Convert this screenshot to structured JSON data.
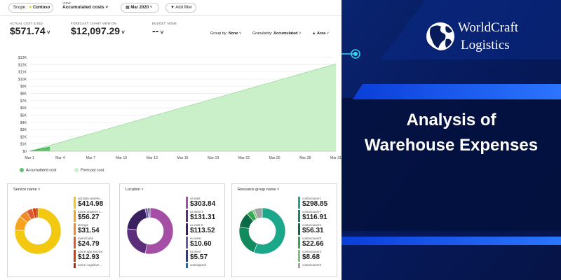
{
  "toolbar": {
    "scope_label": "Scope :",
    "scope_value": "Contoso",
    "view_caption": "VIEW",
    "view_value": "Accumulated costs",
    "date_value": "Mar 2020",
    "add_filter_label": "Add filter"
  },
  "kpis": {
    "actual": {
      "caption": "ACTUAL COST (USD)",
      "value": "$571.74"
    },
    "forecast": {
      "caption": "FORECAST: CHART VIEW ON",
      "value": "$12,097.29"
    },
    "budget": {
      "caption": "BUDGET: NONE",
      "value": "--"
    }
  },
  "controls": {
    "group_by_label": "Group by:",
    "group_by_value": "None",
    "granularity_label": "Granularity:",
    "granularity_value": "Accumulated",
    "chart_type_value": "Area"
  },
  "chart_data": {
    "type": "area",
    "title": "",
    "xlabel": "",
    "ylabel": "",
    "x_tick_labels": [
      "Mar 1",
      "Mar 4",
      "Mar 7",
      "Mar 10",
      "Mar 13",
      "Mar 16",
      "Mar 19",
      "Mar 22",
      "Mar 25",
      "Mar 28",
      "Mar 31"
    ],
    "y_tick_labels": [
      "$0",
      "$1K",
      "$2K",
      "$3K",
      "$4K",
      "$5K",
      "$6K",
      "$7K",
      "$8K",
      "$9K",
      "$10K",
      "$11K",
      "$12K",
      "$13K"
    ],
    "xlim": [
      1,
      31
    ],
    "ylim": [
      0,
      13000
    ],
    "grid": true,
    "legend_position": "bottom-left",
    "series": [
      {
        "name": "Accumulated cost",
        "color": "#5cc26b",
        "x": [
          1,
          3
        ],
        "values": [
          0,
          571.74
        ]
      },
      {
        "name": "Forecast cost",
        "color": "#c9f0c8",
        "x": [
          1,
          31
        ],
        "values": [
          0,
          12097.29
        ]
      }
    ]
  },
  "breakdowns": [
    {
      "title": "Service name",
      "items": [
        {
          "name": "sql data wareho...",
          "value": "$414.98",
          "color": "#f2c811"
        },
        {
          "name": "azure analysis s...",
          "value": "$56.27",
          "color": "#f7a31b"
        },
        {
          "name": "storage",
          "value": "$31.54",
          "color": "#f08c28"
        },
        {
          "name": "event hubs",
          "value": "$24.79",
          "color": "#e05a2b"
        },
        {
          "name": "azure app service",
          "value": "$12.93",
          "color": "#d83b01"
        },
        {
          "name": "azure cognitive ...",
          "value": "",
          "color": "#b22b16"
        }
      ],
      "donut": [
        {
          "value": 414.98,
          "color": "#f2c811"
        },
        {
          "value": 56.27,
          "color": "#f7a31b"
        },
        {
          "value": 31.54,
          "color": "#f08c28"
        },
        {
          "value": 24.79,
          "color": "#e05a2b"
        },
        {
          "value": 12.93,
          "color": "#d83b01"
        },
        {
          "value": 8,
          "color": "#b22b16"
        }
      ]
    },
    {
      "title": "Location",
      "items": [
        {
          "name": "us east",
          "value": "$303.84",
          "color": "#a44ea6"
        },
        {
          "name": "us west 2",
          "value": "$131.31",
          "color": "#5c2d7a"
        },
        {
          "name": "us east 2",
          "value": "$113.52",
          "color": "#3b2060"
        },
        {
          "name": "eu west",
          "value": "$10.60",
          "color": "#6e5aa0"
        },
        {
          "name": "us west",
          "value": "$5.57",
          "color": "#2a3f8a"
        },
        {
          "name": "unassigned",
          "value": "",
          "color": "#0f6cbd"
        }
      ],
      "donut": [
        {
          "value": 303.84,
          "color": "#a44ea6"
        },
        {
          "value": 131.31,
          "color": "#5c2d7a"
        },
        {
          "value": 113.52,
          "color": "#3b2060"
        },
        {
          "value": 10.6,
          "color": "#6e5aa0"
        },
        {
          "value": 5.57,
          "color": "#2a3f8a"
        },
        {
          "value": 4,
          "color": "#0f6cbd"
        }
      ]
    },
    {
      "title": "Resource group name",
      "items": [
        {
          "name": "contosouser1",
          "value": "$298.85",
          "color": "#1ba88a"
        },
        {
          "name": "contosouser7",
          "value": "$116.91",
          "color": "#128a5e"
        },
        {
          "name": "contosouser2",
          "value": "$56.31",
          "color": "#0b6b46"
        },
        {
          "name": "contosouser8",
          "value": "$22.66",
          "color": "#34a853"
        },
        {
          "name": "contosouser3",
          "value": "$8.68",
          "color": "#7cc576"
        },
        {
          "name": "contosouser9",
          "value": "",
          "color": "#a3a3a3"
        }
      ],
      "donut": [
        {
          "value": 298.85,
          "color": "#1ba88a"
        },
        {
          "value": 116.91,
          "color": "#128a5e"
        },
        {
          "value": 56.31,
          "color": "#0b6b46"
        },
        {
          "value": 22.66,
          "color": "#34a853"
        },
        {
          "value": 8.68,
          "color": "#7cc576"
        },
        {
          "value": 30,
          "color": "#a3a3a3"
        }
      ]
    }
  ],
  "brand": {
    "logo_line1": "WorldCraft",
    "logo_line2": "Logistics",
    "headline_line1": "Analysis of",
    "headline_line2": "Warehouse Expenses"
  },
  "colors": {
    "brand_background": "#071a5a",
    "accent_blue": "#1e6bff",
    "accent_cyan": "#35d4f0"
  }
}
